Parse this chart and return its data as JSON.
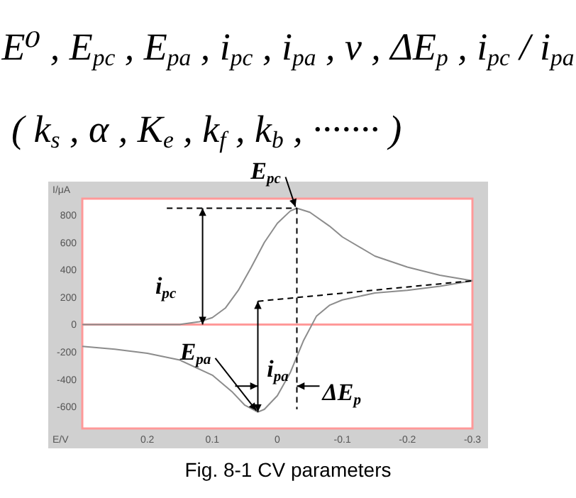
{
  "chart_data": {
    "type": "line",
    "title": "E⁰ , E$_{pc}$ , E$_{pa}$ , i$_{pc}$ , i$_{pa}$ , v , ΔE$_{p}$ , i$_{pc}$ / i$_{pa}$",
    "subtitle": "( k$_{s}$ , α , K$_{e}$ , k$_{f}$ , k$_{b}$ , ······· )",
    "xlabel": "E/V",
    "ylabel": "I/μA",
    "xlim": [
      0.3,
      -0.3
    ],
    "xticks": [
      0.2,
      0.1,
      0,
      -0.1,
      -0.2,
      -0.3
    ],
    "ylim": [
      -760,
      920
    ],
    "yticks": [
      -600,
      -400,
      -200,
      0,
      200,
      400,
      600,
      800
    ],
    "grid": false,
    "marker": "none",
    "series": [
      {
        "color": "#8c8c8c",
        "line_style": "solid",
        "x": [
          0.3,
          0.2,
          0.15,
          0.12,
          0.1,
          0.08,
          0.06,
          0.04,
          0.02,
          0,
          -0.02,
          -0.03,
          -0.05,
          -0.08,
          -0.1,
          -0.15,
          -0.2,
          -0.25,
          -0.3
        ],
        "values": [
          0,
          0,
          0,
          20,
          50,
          120,
          250,
          420,
          600,
          740,
          830,
          850,
          820,
          720,
          640,
          500,
          420,
          360,
          320
        ]
      },
      {
        "color": "#8c8c8c",
        "line_style": "solid",
        "x": [
          -0.3,
          -0.25,
          -0.2,
          -0.15,
          -0.1,
          -0.08,
          -0.06,
          -0.04,
          -0.02,
          0,
          0.02,
          0.03,
          0.05,
          0.07,
          0.1,
          0.15,
          0.2,
          0.25,
          0.3
        ],
        "values": [
          320,
          280,
          250,
          230,
          180,
          140,
          60,
          -120,
          -350,
          -520,
          -620,
          -640,
          -590,
          -490,
          -370,
          -260,
          -210,
          -180,
          -160
        ]
      },
      {
        "color": "#000000",
        "line_style": "dashed",
        "x": [
          0.03,
          -0.3
        ],
        "values": [
          170,
          320
        ]
      },
      {
        "color": "#000000",
        "line_style": "dashed",
        "x": [
          0.17,
          -0.03
        ],
        "values": [
          850,
          850
        ]
      },
      {
        "color": "#000000",
        "line_style": "dashed",
        "x": [
          -0.03,
          -0.03
        ],
        "values": [
          850,
          -620
        ]
      }
    ],
    "ref_lines": [
      {
        "axis": "y",
        "value": 0,
        "color": "#ff9999"
      }
    ],
    "annotations": [
      {
        "text": "E$_{pc}$",
        "x": -0.03,
        "y": 850
      },
      {
        "text": "i$_{pc}$",
        "x": 0.115,
        "y": 850
      },
      {
        "text": "i$_{pa}$",
        "x": 0.03,
        "y": -640
      },
      {
        "text": "E$_{pa}$",
        "x": 0.03,
        "y": -640
      },
      {
        "text": "ΔE$_{p}$",
        "x": -0.03,
        "y": -450
      },
      "Fig. 8-1 CV parameters"
    ]
  }
}
